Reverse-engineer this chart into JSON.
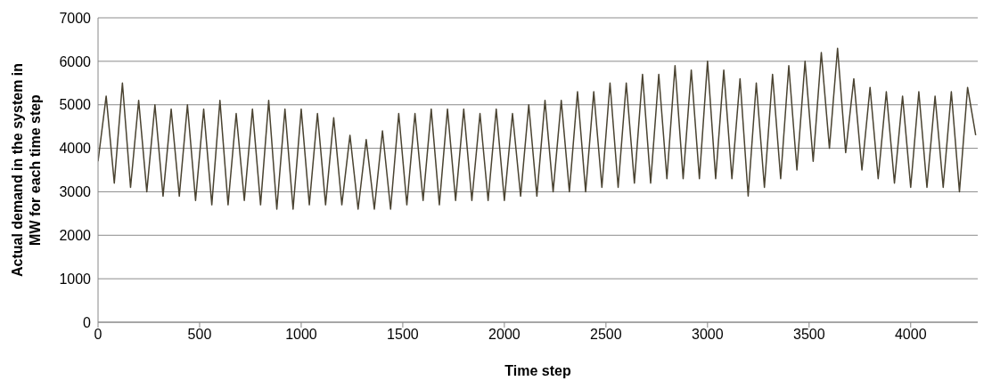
{
  "chart_data": {
    "type": "line",
    "xlabel": "Time step",
    "ylabel": "Actual demand in the system in MW for each time step",
    "x": [
      0,
      40,
      80,
      120,
      160,
      200,
      240,
      280,
      320,
      360,
      400,
      440,
      480,
      520,
      560,
      600,
      640,
      680,
      720,
      760,
      800,
      840,
      880,
      920,
      960,
      1000,
      1040,
      1080,
      1120,
      1160,
      1200,
      1240,
      1280,
      1320,
      1360,
      1400,
      1440,
      1480,
      1520,
      1560,
      1600,
      1640,
      1680,
      1720,
      1760,
      1800,
      1840,
      1880,
      1920,
      1960,
      2000,
      2040,
      2080,
      2120,
      2160,
      2200,
      2240,
      2280,
      2320,
      2360,
      2400,
      2440,
      2480,
      2520,
      2560,
      2600,
      2640,
      2680,
      2720,
      2760,
      2800,
      2840,
      2880,
      2920,
      2960,
      3000,
      3040,
      3080,
      3120,
      3160,
      3200,
      3240,
      3280,
      3320,
      3360,
      3400,
      3440,
      3480,
      3520,
      3560,
      3600,
      3640,
      3680,
      3720,
      3760,
      3800,
      3840,
      3880,
      3920,
      3960,
      4000,
      4040,
      4080,
      4120,
      4160,
      4200,
      4240,
      4280,
      4320
    ],
    "series": [
      {
        "color": "#4a4331",
        "values": [
          3700,
          5200,
          3200,
          5500,
          3100,
          5100,
          3000,
          5000,
          2900,
          4900,
          2900,
          5000,
          2800,
          4900,
          2700,
          5100,
          2700,
          4800,
          2800,
          4900,
          2700,
          5100,
          2600,
          4900,
          2600,
          4900,
          2700,
          4800,
          2700,
          4700,
          2700,
          4300,
          2600,
          4200,
          2600,
          4400,
          2600,
          4800,
          2700,
          4800,
          2800,
          4900,
          2700,
          4900,
          2800,
          4900,
          2800,
          4800,
          2800,
          4900,
          2800,
          4800,
          2900,
          5000,
          2900,
          5100,
          3000,
          5100,
          3000,
          5300,
          3000,
          5300,
          3100,
          5500,
          3100,
          5500,
          3200,
          5700,
          3200,
          5700,
          3300,
          5900,
          3300,
          5800,
          3300,
          6000,
          3300,
          5800,
          3300,
          5600,
          2900,
          5500,
          3100,
          5700,
          3300,
          5900,
          3500,
          6000,
          3700,
          6200,
          4000,
          6300,
          3900,
          5600,
          3500,
          5400,
          3300,
          5300,
          3200,
          5200,
          3100,
          5300,
          3100,
          5200,
          3100,
          5300,
          3000,
          5400,
          4300
        ]
      }
    ],
    "xlim": [
      0,
      4330
    ],
    "xticks": [
      0,
      500,
      1000,
      1500,
      2000,
      2500,
      3000,
      3500,
      4000
    ],
    "ylim": [
      0,
      7000
    ],
    "yticks": [
      0,
      1000,
      2000,
      3000,
      4000,
      5000,
      6000,
      7000
    ],
    "grid": "y",
    "legend": false,
    "marker": "none",
    "line_style": "solid"
  }
}
